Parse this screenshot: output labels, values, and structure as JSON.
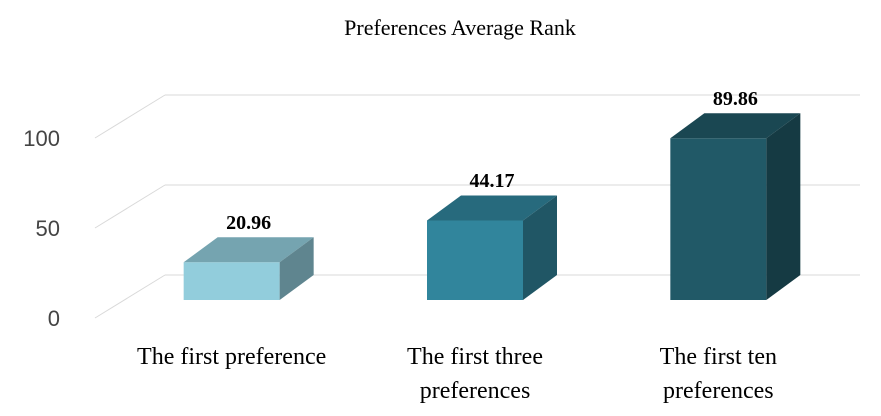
{
  "chart_data": {
    "type": "bar3d",
    "title": "Preferences Average Rank",
    "categories": [
      "The first preference",
      "The first three preferences",
      "The first ten preferences"
    ],
    "values": [
      20.96,
      44.17,
      89.86
    ],
    "colors": [
      "#92cddc",
      "#31859c",
      "#215967"
    ],
    "ylim": [
      0,
      100
    ],
    "yticks": [
      0,
      50,
      100
    ],
    "grid": true
  }
}
